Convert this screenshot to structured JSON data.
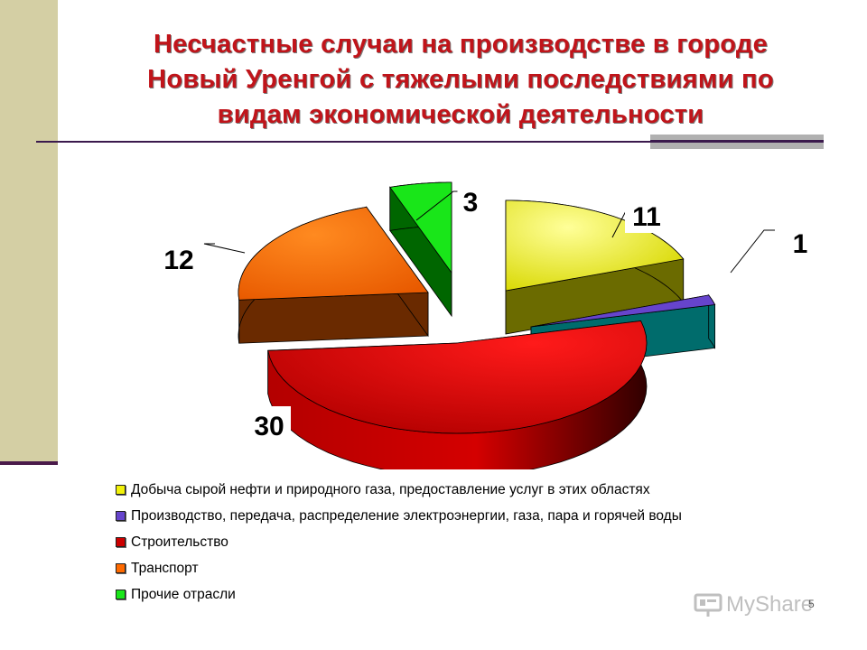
{
  "slide": {
    "title_lines": [
      "Несчастные случаи на производстве в городе",
      "Новый Уренгой с тяжелыми последствиями по",
      "видам экономической деятельности"
    ],
    "page_number": "5",
    "brand_text": "MyShare"
  },
  "chart_data": {
    "type": "pie",
    "style": "3d-exploded",
    "title": "",
    "legend_position": "bottom",
    "slices": [
      {
        "label": "Добыча сырой нефти и природного газа, предоставление услуг в этих областях",
        "value": 11,
        "color": "#f2f20a",
        "side_color": "#6b6b00"
      },
      {
        "label": "Производство, передача, распределение электроэнергии, газа, пара и горячей воды",
        "value": 1,
        "color": "#6644cc",
        "side_color": "#006c6c"
      },
      {
        "label": "Строительство",
        "value": 30,
        "color": "#e00000",
        "side_color": "#8c0000"
      },
      {
        "label": "Транспорт",
        "value": 12,
        "color": "#ff6a00",
        "side_color": "#6a2a00"
      },
      {
        "label": "Прочие отрасли",
        "value": 3,
        "color": "#19e619",
        "side_color": "#006600"
      }
    ]
  }
}
